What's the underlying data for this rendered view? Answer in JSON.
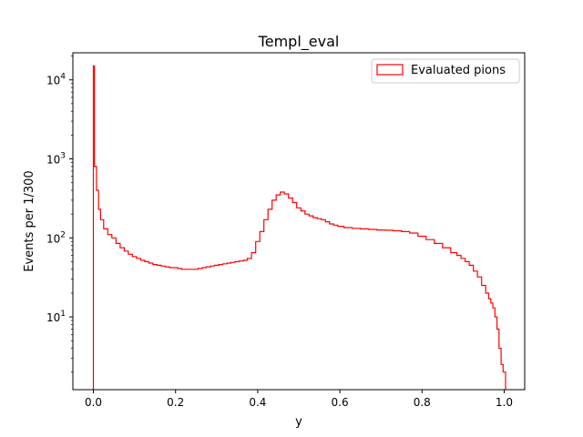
{
  "chart_data": {
    "type": "histogram",
    "title": "Templ_eval",
    "xlabel": "y",
    "ylabel": "Events per 1/300",
    "xlim": [
      -0.05,
      1.05
    ],
    "ylim": [
      1.2,
      22000
    ],
    "yscale": "log",
    "grid": false,
    "legend_loc": "upper right",
    "xticks": [
      0.0,
      0.2,
      0.4,
      0.6,
      0.8,
      1.0
    ],
    "xtick_labels": [
      "0.0",
      "0.2",
      "0.4",
      "0.6",
      "0.8",
      "1.0"
    ],
    "yticks": [
      10,
      100,
      1000,
      10000
    ],
    "ytick_labels": [
      "10",
      "10",
      "10",
      "10"
    ],
    "ytick_exponents": [
      "1",
      "2",
      "3",
      "4"
    ],
    "bin_width": 0.0033333,
    "series": [
      {
        "name": "Evaluated pions",
        "color": "#ff0000",
        "histtype": "step",
        "x": [
          0.0,
          0.005,
          0.01,
          0.015,
          0.02,
          0.03,
          0.04,
          0.05,
          0.06,
          0.07,
          0.08,
          0.09,
          0.1,
          0.11,
          0.12,
          0.13,
          0.14,
          0.15,
          0.16,
          0.17,
          0.18,
          0.19,
          0.2,
          0.21,
          0.22,
          0.23,
          0.24,
          0.25,
          0.26,
          0.27,
          0.28,
          0.29,
          0.3,
          0.31,
          0.32,
          0.33,
          0.34,
          0.35,
          0.36,
          0.37,
          0.38,
          0.39,
          0.4,
          0.41,
          0.42,
          0.43,
          0.44,
          0.45,
          0.46,
          0.47,
          0.48,
          0.49,
          0.5,
          0.51,
          0.52,
          0.53,
          0.54,
          0.55,
          0.56,
          0.57,
          0.58,
          0.59,
          0.6,
          0.62,
          0.64,
          0.66,
          0.68,
          0.7,
          0.72,
          0.74,
          0.76,
          0.78,
          0.8,
          0.82,
          0.84,
          0.86,
          0.88,
          0.89,
          0.9,
          0.91,
          0.92,
          0.93,
          0.94,
          0.95,
          0.96,
          0.965,
          0.97,
          0.975,
          0.98,
          0.985,
          0.99,
          0.995,
          1.0
        ],
        "y": [
          15000,
          800,
          400,
          230,
          170,
          130,
          110,
          100,
          85,
          75,
          68,
          62,
          58,
          55,
          52,
          50,
          48,
          46,
          45,
          44,
          43,
          42,
          42,
          41,
          40,
          40,
          40,
          40,
          41,
          42,
          43,
          44,
          45,
          46,
          47,
          48,
          49,
          50,
          51,
          52,
          55,
          65,
          90,
          120,
          170,
          230,
          300,
          350,
          380,
          360,
          320,
          280,
          240,
          220,
          200,
          190,
          180,
          175,
          170,
          160,
          150,
          145,
          140,
          135,
          132,
          130,
          128,
          126,
          125,
          123,
          120,
          115,
          105,
          95,
          85,
          75,
          65,
          60,
          55,
          50,
          45,
          38,
          32,
          25,
          20,
          17,
          15,
          13,
          10,
          7,
          4,
          2.5,
          2
        ]
      }
    ]
  }
}
